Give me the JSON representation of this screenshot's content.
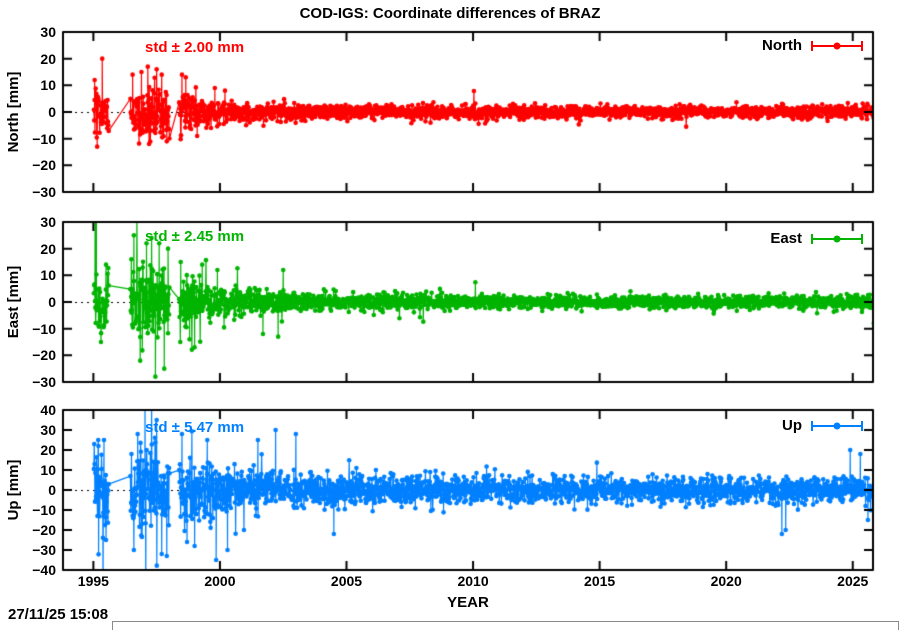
{
  "title": "COD-IGS: Coordinate differences of BRAZ",
  "timestamp": "27/11/25 15:08",
  "chart_meta": {
    "xlabel": "YEAR",
    "xlim": [
      1993.8,
      2025.8
    ],
    "xticks": [
      1995,
      2000,
      2005,
      2010,
      2015,
      2020,
      2025
    ],
    "x_data_start": 1995.02,
    "x_data_end": 2025.92,
    "grid": "off",
    "zero_line": "dashed-black",
    "background": "#ffffff",
    "axis_color": "#000000"
  },
  "chart_data": [
    {
      "type": "scatter",
      "name": "North",
      "ylabel": "North [mm]",
      "std_label": "std ± 2.00 mm",
      "std_mm": 2.0,
      "color": "#ff0000",
      "ylim": [
        -30,
        30
      ],
      "yticks": [
        30,
        20,
        10,
        0,
        -10,
        -20,
        -30
      ],
      "legend": {
        "label": "North",
        "position": "top-right",
        "marker": "errorbar-dot"
      },
      "gaps": [
        [
          1995.62,
          1996.45
        ],
        [
          1998.02,
          1998.38
        ]
      ],
      "noise_envelope": [
        [
          1994,
          4.5
        ],
        [
          1995.6,
          4.5
        ],
        [
          1996.45,
          5.0
        ],
        [
          1997.5,
          5.0
        ],
        [
          1998.4,
          3.8
        ],
        [
          1999.5,
          3.0
        ],
        [
          2000.5,
          2.0
        ],
        [
          2002,
          1.6
        ],
        [
          2005,
          1.3
        ],
        [
          2010,
          1.2
        ],
        [
          2020,
          1.1
        ],
        [
          2026,
          1.3
        ]
      ],
      "outliers": [
        [
          1995.05,
          12
        ],
        [
          1995.15,
          -13
        ],
        [
          1995.35,
          20
        ],
        [
          1996.55,
          14
        ],
        [
          1996.9,
          15
        ],
        [
          1997.15,
          17
        ],
        [
          1997.2,
          -12
        ],
        [
          1997.5,
          16
        ],
        [
          1997.7,
          14
        ],
        [
          1997.9,
          -11
        ],
        [
          1998.5,
          14
        ],
        [
          1998.65,
          13
        ],
        [
          1999.1,
          -9
        ],
        [
          1999.8,
          9
        ],
        [
          2000.2,
          8
        ]
      ]
    },
    {
      "type": "scatter",
      "name": "East",
      "ylabel": "East [mm]",
      "std_label": "std ± 2.45 mm",
      "std_mm": 2.45,
      "color": "#00b400",
      "ylim": [
        -30,
        30
      ],
      "yticks": [
        30,
        20,
        10,
        0,
        -10,
        -20,
        -30
      ],
      "legend": {
        "label": "East",
        "position": "top-right",
        "marker": "errorbar-dot"
      },
      "gaps": [
        [
          1995.62,
          1996.45
        ],
        [
          1998.02,
          1998.38
        ]
      ],
      "noise_envelope": [
        [
          1994,
          6.0
        ],
        [
          1995.6,
          6.0
        ],
        [
          1996.45,
          7.0
        ],
        [
          1997.5,
          7.0
        ],
        [
          1998.4,
          5.0
        ],
        [
          1999.5,
          4.0
        ],
        [
          2000.5,
          2.8
        ],
        [
          2002,
          2.2
        ],
        [
          2005,
          1.6
        ],
        [
          2010,
          1.3
        ],
        [
          2020,
          1.2
        ],
        [
          2026,
          1.3
        ]
      ],
      "outliers": [
        [
          1995.07,
          38
        ],
        [
          1995.12,
          36
        ],
        [
          1995.3,
          -15
        ],
        [
          1995.5,
          14
        ],
        [
          1996.5,
          16
        ],
        [
          1996.6,
          25
        ],
        [
          1996.85,
          -22
        ],
        [
          1997.1,
          22
        ],
        [
          1997.3,
          24
        ],
        [
          1997.45,
          -28
        ],
        [
          1997.6,
          22
        ],
        [
          1997.8,
          -25
        ],
        [
          1997.95,
          20
        ],
        [
          1998.45,
          15
        ],
        [
          1998.8,
          -14
        ],
        [
          1999.0,
          -17
        ],
        [
          1999.3,
          14
        ],
        [
          1999.9,
          12
        ],
        [
          2001.7,
          -12
        ],
        [
          2002.3,
          -13
        ],
        [
          2002.5,
          12
        ]
      ]
    },
    {
      "type": "scatter",
      "name": "Up",
      "ylabel": "Up [mm]",
      "std_label": "std ± 5.47 mm",
      "std_mm": 5.47,
      "color": "#0080ff",
      "ylim": [
        -40,
        40
      ],
      "yticks": [
        40,
        30,
        20,
        10,
        0,
        -10,
        -20,
        -30,
        -40
      ],
      "legend": {
        "label": "Up",
        "position": "top-right",
        "marker": "errorbar-dot"
      },
      "gaps": [
        [
          1995.62,
          1996.45
        ],
        [
          1998.02,
          1998.38
        ]
      ],
      "noise_envelope": [
        [
          1994,
          11
        ],
        [
          1995.6,
          11
        ],
        [
          1996.45,
          12
        ],
        [
          1997.5,
          11
        ],
        [
          1998.4,
          9
        ],
        [
          1999.5,
          7.5
        ],
        [
          2000.5,
          6
        ],
        [
          2002,
          5.2
        ],
        [
          2005,
          4.2
        ],
        [
          2010,
          3.4
        ],
        [
          2015,
          3.2
        ],
        [
          2020,
          3.0
        ],
        [
          2026,
          3.6
        ]
      ],
      "outliers": [
        [
          1995.2,
          22
        ],
        [
          1995.38,
          -60
        ],
        [
          1995.42,
          25
        ],
        [
          1995.5,
          -25
        ],
        [
          1996.6,
          -30
        ],
        [
          1996.75,
          28
        ],
        [
          1997.04,
          48
        ],
        [
          1997.07,
          -50
        ],
        [
          1997.3,
          45
        ],
        [
          1997.5,
          35
        ],
        [
          1997.7,
          -32
        ],
        [
          1997.9,
          -33
        ],
        [
          1998.5,
          28
        ],
        [
          1998.7,
          -26
        ],
        [
          1999.0,
          -28
        ],
        [
          1999.5,
          25
        ],
        [
          1999.85,
          -35
        ],
        [
          2000.3,
          -30
        ],
        [
          2001.5,
          25
        ],
        [
          2002.2,
          30
        ],
        [
          2003.0,
          28
        ],
        [
          2004.5,
          -22
        ],
        [
          2022.2,
          -22
        ],
        [
          2022.35,
          -20
        ],
        [
          2024.9,
          20
        ],
        [
          2025.3,
          18
        ],
        [
          2025.6,
          -15
        ]
      ]
    }
  ]
}
